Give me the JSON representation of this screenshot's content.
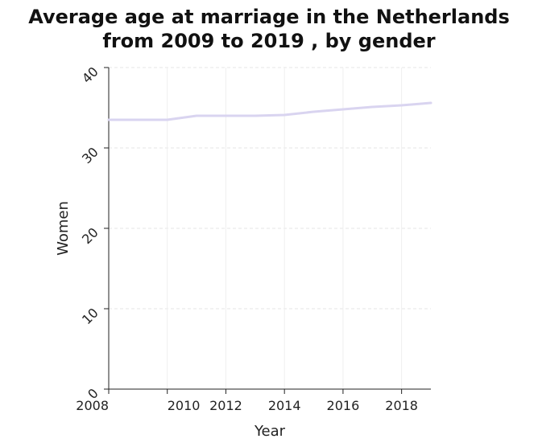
{
  "chart_data": {
    "type": "line",
    "title_line1": "Average age at marriage in the Netherlands",
    "title_line2": "from 2009 to 2019 , by gender",
    "xlabel": "Year",
    "ylabel": "Women",
    "x_ticks": [
      "2008",
      "2010",
      "2012",
      "2014",
      "2016",
      "2018"
    ],
    "y_ticks": [
      0,
      10,
      20,
      30,
      40
    ],
    "xlim": [
      2008,
      2019
    ],
    "ylim": [
      0,
      40
    ],
    "grid": true,
    "series": [
      {
        "color": "#d9d4f0",
        "x": [
          2008,
          2009,
          2010,
          2011,
          2012,
          2013,
          2014,
          2015,
          2016,
          2017,
          2018,
          2019
        ],
        "values": [
          33.5,
          33.5,
          33.5,
          34.0,
          34.0,
          34.0,
          34.1,
          34.5,
          34.8,
          35.1,
          35.3,
          35.6
        ]
      }
    ]
  }
}
